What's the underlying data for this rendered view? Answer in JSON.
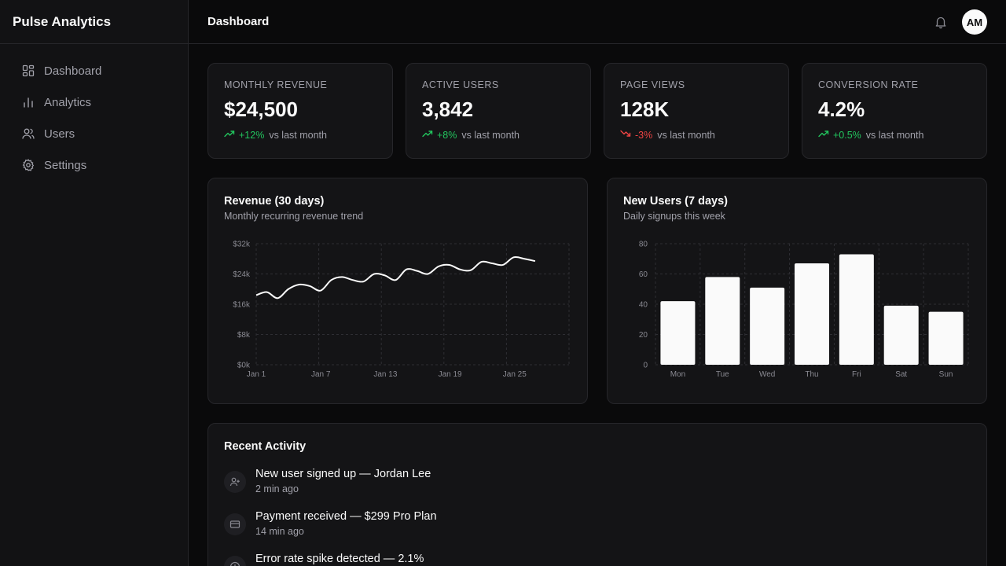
{
  "app": {
    "name": "Pulse Analytics"
  },
  "sidebar": {
    "items": [
      {
        "label": "Dashboard",
        "icon": "dashboard-icon"
      },
      {
        "label": "Analytics",
        "icon": "bar-chart-icon"
      },
      {
        "label": "Users",
        "icon": "users-icon"
      },
      {
        "label": "Settings",
        "icon": "gear-icon"
      }
    ]
  },
  "header": {
    "title": "Dashboard",
    "avatar_initials": "AM",
    "bell_icon": "bell-icon"
  },
  "stats": [
    {
      "label": "MONTHLY REVENUE",
      "value": "$24,500",
      "delta": "+12%",
      "trend": "up",
      "suffix": "vs last month"
    },
    {
      "label": "ACTIVE USERS",
      "value": "3,842",
      "delta": "+8%",
      "trend": "up",
      "suffix": "vs last month"
    },
    {
      "label": "PAGE VIEWS",
      "value": "128K",
      "delta": "-3%",
      "trend": "down",
      "suffix": "vs last month"
    },
    {
      "label": "CONVERSION RATE",
      "value": "4.2%",
      "delta": "+0.5%",
      "trend": "up",
      "suffix": "vs last month"
    }
  ],
  "colors": {
    "up": "#22c55e",
    "down": "#ef4444",
    "accent": "#fafafa"
  },
  "chart_data": [
    {
      "type": "line",
      "title": "Revenue (30 days)",
      "subtitle": "Monthly recurring revenue trend",
      "xlabel": "",
      "ylabel": "",
      "x_tick_labels": [
        "Jan 1",
        "Jan 7",
        "Jan 13",
        "Jan 19",
        "Jan 25"
      ],
      "y_tick_labels": [
        "$32k",
        "$24k",
        "$16k",
        "$8k",
        "$0k"
      ],
      "ylim": [
        0,
        32000
      ],
      "x": [
        "Jan 1",
        "Jan 2",
        "Jan 3",
        "Jan 4",
        "Jan 5",
        "Jan 6",
        "Jan 7",
        "Jan 8",
        "Jan 9",
        "Jan 10",
        "Jan 11",
        "Jan 12",
        "Jan 13",
        "Jan 14",
        "Jan 15",
        "Jan 16",
        "Jan 17",
        "Jan 18",
        "Jan 19",
        "Jan 20",
        "Jan 21",
        "Jan 22",
        "Jan 23",
        "Jan 24",
        "Jan 25",
        "Jan 26",
        "Jan 27"
      ],
      "values": [
        18400,
        19200,
        17600,
        20000,
        21200,
        20800,
        19600,
        22400,
        23200,
        22400,
        22000,
        24000,
        23600,
        22400,
        25200,
        24800,
        24000,
        26000,
        26400,
        25200,
        25000,
        27200,
        26800,
        26400,
        28400,
        28000,
        27400
      ],
      "grid": true,
      "legend": "none"
    },
    {
      "type": "bar",
      "title": "New Users (7 days)",
      "subtitle": "Daily signups this week",
      "xlabel": "",
      "ylabel": "",
      "categories": [
        "Mon",
        "Tue",
        "Wed",
        "Thu",
        "Fri",
        "Sat",
        "Sun"
      ],
      "values": [
        42,
        58,
        51,
        67,
        73,
        39,
        35
      ],
      "y_tick_labels": [
        "80",
        "60",
        "40",
        "20",
        "0"
      ],
      "ylim": [
        0,
        80
      ],
      "grid": true,
      "legend": "none"
    }
  ],
  "activity": {
    "title": "Recent Activity",
    "items": [
      {
        "text": "New user signed up — Jordan Lee",
        "time": "2 min ago",
        "icon": "user-plus-icon"
      },
      {
        "text": "Payment received — $299 Pro Plan",
        "time": "14 min ago",
        "icon": "credit-card-icon"
      },
      {
        "text": "Error rate spike detected — 2.1%",
        "time": "",
        "icon": "alert-icon"
      }
    ]
  }
}
